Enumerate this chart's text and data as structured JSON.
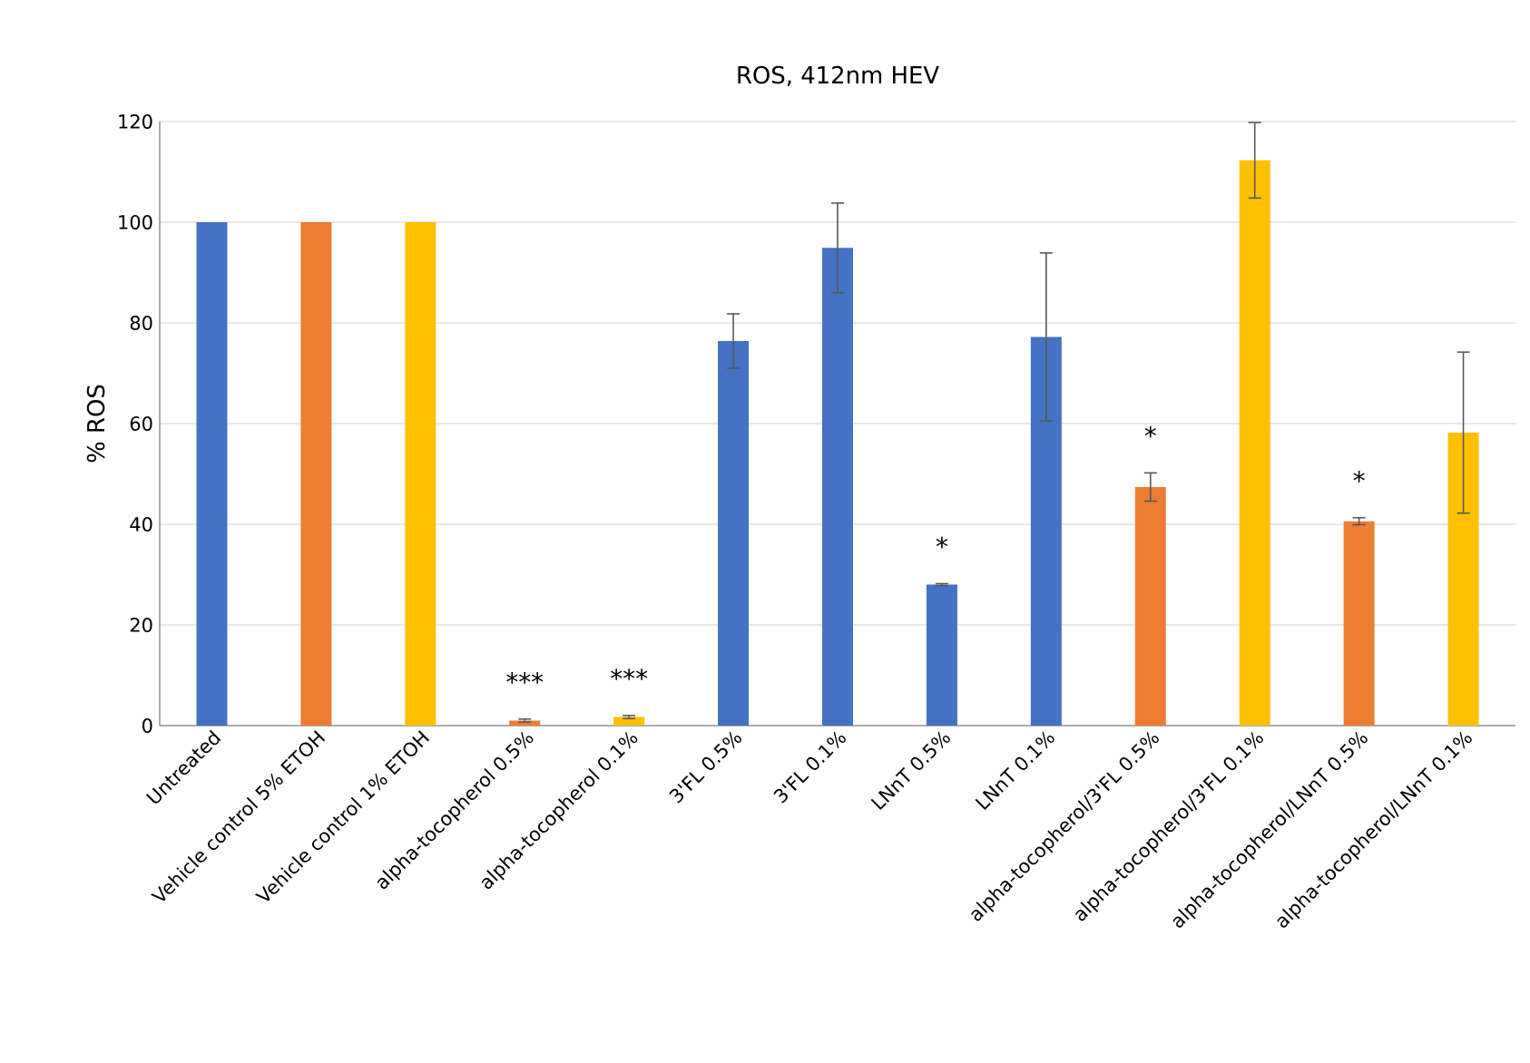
{
  "chart_data": {
    "type": "bar",
    "title": "ROS, 412nm HEV",
    "ylabel": "% ROS",
    "categories": [
      "Untreated",
      "Vehicle control 5% ETOH",
      "Vehicle control 1% ETOH",
      "alpha-tocopherol 0.5%",
      "alpha-tocopherol 0.1%",
      "3'FL 0.5%",
      "3'FL 0.1%",
      "LNnT 0.5%",
      "LNnT 0.1%",
      "alpha-tocopherol/3'FL 0.5%",
      "alpha-tocopherol/3'FL 0.1%",
      "alpha-tocopherol/LNnT 0.5%",
      "alpha-tocopherol/LNnT 0.1%"
    ],
    "values": [
      100,
      100,
      100,
      1.0,
      1.7,
      76.4,
      94.9,
      28.0,
      77.2,
      47.4,
      112.3,
      40.6,
      58.2
    ],
    "errors": [
      null,
      null,
      null,
      0.3,
      0.3,
      5.4,
      8.9,
      0.2,
      16.7,
      2.8,
      7.5,
      0.7,
      16.0
    ],
    "colors": [
      "#4472c4",
      "#ed7d31",
      "#ffc000",
      "#ed7d31",
      "#ffc000",
      "#4472c4",
      "#4472c4",
      "#4472c4",
      "#4472c4",
      "#ed7d31",
      "#ffc000",
      "#ed7d31",
      "#ffc000"
    ],
    "ylim": [
      0,
      120
    ],
    "yticks": [
      0,
      20,
      40,
      60,
      80,
      100,
      120
    ],
    "grid": "y",
    "annotations": [
      {
        "text": "***",
        "x": "alpha-tocopherol 0.5%",
        "y": 1.0
      },
      {
        "text": "***",
        "x": "alpha-tocopherol 0.1%",
        "y": 1.7
      },
      {
        "text": "*",
        "x": "LNnT 0.5%",
        "y": 28.0
      },
      {
        "text": "*",
        "x": "alpha-tocopherol/3'FL 0.5%",
        "y": 47.4
      },
      {
        "text": "*",
        "x": "alpha-tocopherol/LNnT 0.5%",
        "y": 40.6
      }
    ]
  }
}
